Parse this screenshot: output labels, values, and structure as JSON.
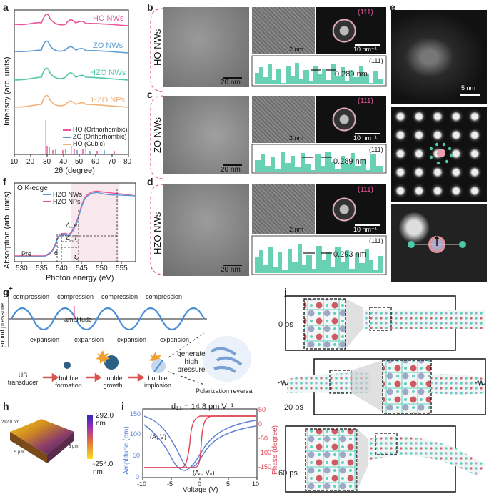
{
  "panels": {
    "a": "a",
    "b": "b",
    "c": "c",
    "d": "d",
    "e": "e",
    "f": "f",
    "g": "g",
    "h": "h",
    "i": "i",
    "j": "j"
  },
  "panel_a": {
    "ylabel": "Intensity (arb. units)",
    "xlabel": "2θ (degree)",
    "ticks": [
      "10",
      "20",
      "30",
      "40",
      "50",
      "60",
      "70",
      "80"
    ],
    "curve_labels": [
      "HO NWs",
      "ZO NWs",
      "HZO NWs",
      "HZO NPs"
    ],
    "legend": [
      "HO (Orthorhombic)",
      "ZO (Orthorhombic)",
      "HO (Cubic)"
    ],
    "colors": {
      "HO": "#e8579a",
      "ZO": "#5b9bd5",
      "HZO": "#4dc9a7",
      "NPs": "#f1b27b"
    }
  },
  "panel_b": {
    "label": "HO NWs",
    "scale": "20 nm",
    "hr_scale": "2 nm",
    "fft_scale": "10 nm⁻¹",
    "plane": "(111)",
    "d": "0.289 nm"
  },
  "panel_c": {
    "label": "ZO NWs",
    "scale": "20 nm",
    "hr_scale": "2 nm",
    "fft_scale": "10 nm⁻¹",
    "plane": "(111)",
    "d": "0.289 nm"
  },
  "panel_d": {
    "label": "HZO NWs",
    "scale": "20 nm",
    "hr_scale": "2 nm",
    "fft_scale": "10 nm⁻¹",
    "plane": "(111)",
    "d": "0.293 nm"
  },
  "panel_e": {
    "scale": "5 nm"
  },
  "panel_f": {
    "title": "O K-edge",
    "ylabel": "Absorption (arb. units)",
    "xlabel": "Photon energy (eV)",
    "ticks": [
      "530",
      "535",
      "540",
      "545",
      "550",
      "555"
    ],
    "legend": [
      "HZO NWs",
      "HZO NPs"
    ],
    "annotations": [
      "Pre",
      "e",
      "t₂",
      "Δ_T",
      "Δ_e"
    ]
  },
  "panel_g": {
    "ylabel": "sound pressure",
    "plus": "+",
    "minus": "-",
    "compressions": [
      "compression",
      "compression",
      "compression",
      "compression"
    ],
    "expansions": [
      "expansion",
      "expansion",
      "expansion",
      "expansion"
    ],
    "amplitude": "amplitude",
    "steps": [
      "US transducer",
      "bubble formation",
      "bubble growth",
      "bubble implosion"
    ],
    "generate": "generate high pressure",
    "result": "Polarization reversal"
  },
  "panel_h": {
    "max": "292.0 nm",
    "min": "-254.0 nm",
    "axis_small": [
      "5 μm",
      "5 μm",
      "292.0 nm"
    ]
  },
  "panel_i": {
    "title": "d₃₃ = 14.8 pm V⁻¹",
    "ylabel_left": "Amplitude (pm)",
    "ylabel_right": "Phase (degree)",
    "xlabel": "Voltage (V)",
    "xticks": [
      "-10",
      "-5",
      "0",
      "5",
      "10"
    ],
    "yticks_left": [
      "0",
      "50",
      "100",
      "150"
    ],
    "yticks_right": [
      "50",
      "0",
      "-50",
      "-100",
      "-150"
    ],
    "annot1": "(A, V)",
    "annot2": "(A₀, V₀)"
  },
  "panel_j": {
    "times": [
      "0 ps",
      "20 ps",
      "60 ps"
    ]
  }
}
